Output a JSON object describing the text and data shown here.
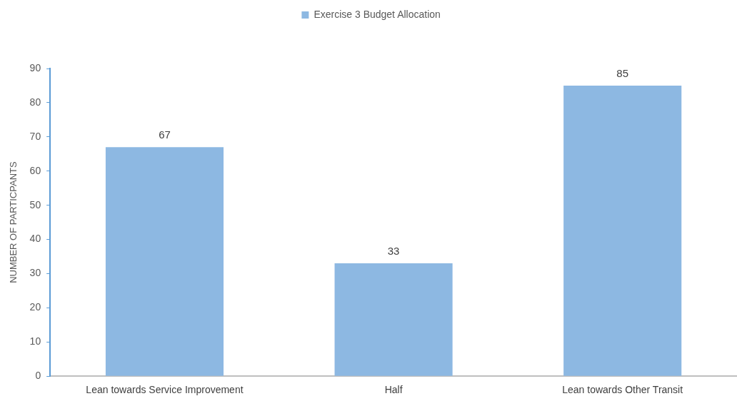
{
  "chart_data": {
    "type": "bar",
    "categories": [
      "Lean towards Service Improvement",
      "Half",
      "Lean towards Other Transit"
    ],
    "series": [
      {
        "name": "Exercise 3 Budget Allocation",
        "color": "#8db8e2",
        "values": [
          67,
          33,
          85
        ]
      }
    ],
    "ylabel": "NUMBER OF PARTICPANTS",
    "ylim": [
      0,
      90
    ],
    "yticks": [
      0,
      10,
      20,
      30,
      40,
      50,
      60,
      70,
      80,
      90
    ],
    "grid": false,
    "legend": "top",
    "data_labels": true
  }
}
